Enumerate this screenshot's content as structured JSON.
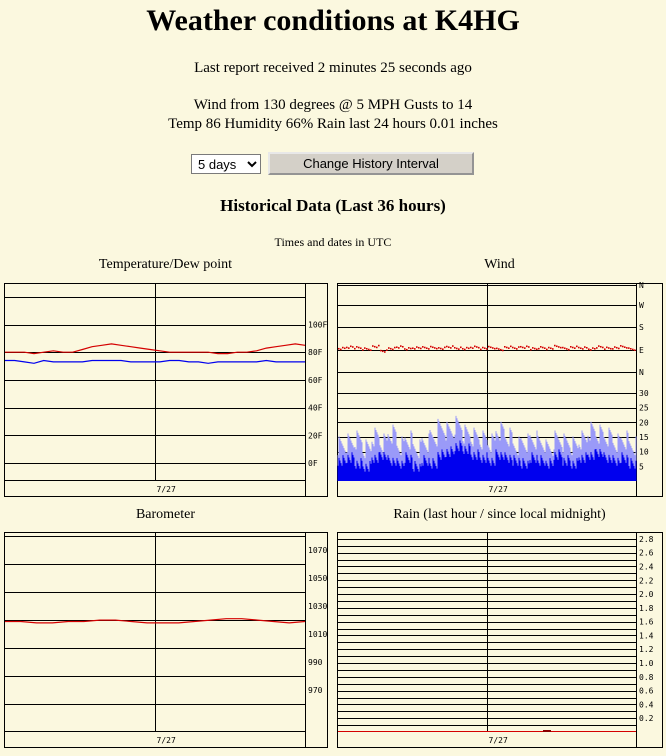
{
  "page": {
    "title": "Weather conditions at K4HG",
    "last_report": "Last report received 2 minutes 25 seconds ago",
    "wind_line": "Wind from 130 degrees @ 5 MPH Gusts to 14",
    "temp_line": "Temp 86 Humidity 66% Rain last 24 hours 0.01 inches",
    "interval_selected": "5 days",
    "change_button_label": "Change History Interval",
    "history_heading": "Historical Data (Last 36 hours)",
    "utc_note": "Times and dates in UTC"
  },
  "colors": {
    "background": "#fbf8df",
    "red": "#d40000",
    "blue": "#0000ee",
    "light_blue": "#9a9af8",
    "grid": "#000000"
  },
  "chart_data": [
    {
      "id": "temp",
      "type": "line",
      "title": "Temperature/Dew point",
      "x_label": "7/27",
      "y_ticks": [
        "100F",
        "80F",
        "60F",
        "40F",
        "20F",
        "0F"
      ],
      "ylim": [
        -13,
        130
      ],
      "series": [
        {
          "color": "#d40000",
          "values": [
            80,
            80,
            80,
            79,
            80,
            81,
            80,
            80,
            82,
            84,
            85,
            86,
            85,
            84,
            83,
            82,
            81,
            80,
            80,
            80,
            80,
            80,
            79,
            79,
            80,
            80,
            81,
            83,
            84,
            85,
            86,
            85
          ]
        },
        {
          "color": "#0000ee",
          "values": [
            74,
            74,
            73,
            72,
            74,
            73,
            73,
            73,
            73,
            74,
            74,
            74,
            74,
            73,
            73,
            73,
            73,
            74,
            74,
            73,
            73,
            72,
            73,
            73,
            73,
            73,
            73,
            74,
            73,
            73,
            73,
            73
          ]
        }
      ]
    },
    {
      "id": "wind",
      "type": "line",
      "title": "Wind",
      "x_label": "7/27",
      "direction_ticks": [
        "N",
        "W",
        "S",
        "E",
        "N"
      ],
      "speed_ticks": [
        "30",
        "25",
        "20",
        "15",
        "10",
        "5"
      ],
      "direction_degrees": [
        97,
        103,
        99,
        95,
        104,
        87,
        98,
        102,
        96,
        100,
        99,
        101,
        97,
        103,
        99,
        96,
        102,
        98,
        100,
        94,
        101,
        99,
        103,
        95,
        100,
        98,
        104,
        97,
        101,
        99,
        96,
        102,
        98,
        100,
        103,
        95
      ],
      "gust_mph": [
        12,
        13,
        14,
        11,
        15,
        13,
        16,
        12,
        14,
        11,
        13,
        15,
        18,
        17,
        19,
        16,
        15,
        14,
        13,
        17,
        15,
        12,
        13,
        14,
        13,
        11,
        14,
        13,
        12,
        14,
        17,
        16,
        15,
        13,
        14,
        12
      ],
      "speed_mph": [
        7,
        8,
        6,
        5,
        8,
        9,
        7,
        6,
        8,
        5,
        7,
        6,
        9,
        10,
        12,
        11,
        9,
        8,
        7,
        9,
        8,
        7,
        6,
        8,
        7,
        6,
        9,
        7,
        6,
        8,
        9,
        10,
        8,
        7,
        8,
        6
      ]
    },
    {
      "id": "baro",
      "type": "line",
      "title": "Barometer",
      "x_label": "7/27",
      "y_ticks": [
        "1070",
        "1050",
        "1030",
        "1010",
        "990",
        "970"
      ],
      "ylim": [
        940,
        1083
      ],
      "series": [
        {
          "color": "#d40000",
          "values": [
            1019,
            1019,
            1018,
            1018,
            1019,
            1019,
            1020,
            1020,
            1019,
            1018,
            1018,
            1018,
            1019,
            1020,
            1021,
            1021,
            1020,
            1019,
            1018,
            1019
          ]
        }
      ]
    },
    {
      "id": "rain",
      "type": "bar",
      "title": "Rain (last hour / since local midnight)",
      "x_label": "7/27",
      "y_ticks": [
        "2.8",
        "2.6",
        "2.4",
        "2.2",
        "2.0",
        "1.8",
        "1.6",
        "1.4",
        "1.2",
        "1.0",
        "0.8",
        "0.6",
        "0.4",
        "0.2"
      ],
      "ylim": [
        0,
        2.9
      ],
      "series": [
        {
          "name": "",
          "color": "#d40000",
          "values": [
            0.01
          ]
        }
      ]
    }
  ]
}
